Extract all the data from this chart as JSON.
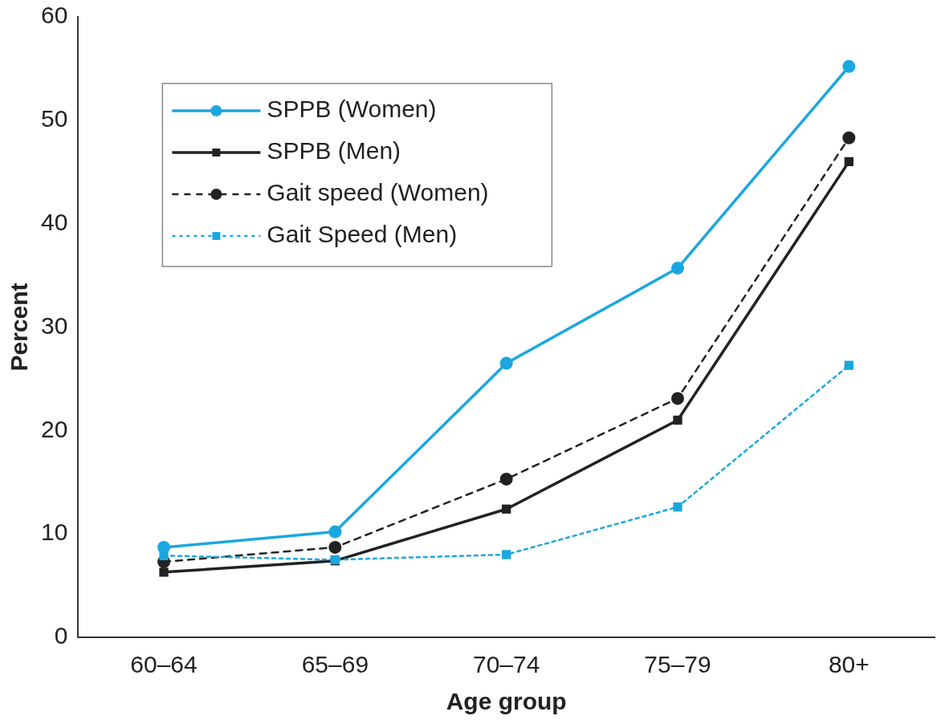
{
  "chart_data": {
    "type": "line",
    "xlabel": "Age group",
    "ylabel": "Percent",
    "categories": [
      "60–64",
      "65–69",
      "70–74",
      "75–79",
      "80+"
    ],
    "ylim": [
      0,
      60
    ],
    "yticks": [
      0,
      10,
      20,
      30,
      40,
      50,
      60
    ],
    "grid": false,
    "legend": "top left",
    "series": [
      {
        "name": "SPPB (Women)",
        "color": "#1aa7e0",
        "marker": "circle",
        "line_style": "solid",
        "values": [
          8.7,
          10.2,
          26.5,
          35.7,
          55.2
        ]
      },
      {
        "name": "SPPB (Men)",
        "color": "#222222",
        "marker": "square",
        "line_style": "solid",
        "values": [
          6.3,
          7.4,
          12.4,
          21.0,
          46.0
        ]
      },
      {
        "name": "Gait speed (Women)",
        "color": "#222222",
        "marker": "circle",
        "line_style": "dashed",
        "values": [
          7.3,
          8.7,
          15.3,
          23.1,
          48.3
        ]
      },
      {
        "name": "Gait Speed (Men)",
        "color": "#1aa7e0",
        "marker": "square",
        "line_style": "dotted",
        "values": [
          7.9,
          7.5,
          8.0,
          12.6,
          26.3
        ]
      }
    ]
  }
}
